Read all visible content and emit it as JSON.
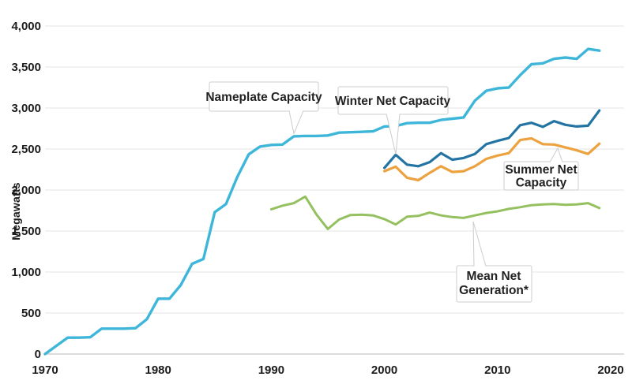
{
  "chart_data": {
    "type": "line",
    "title": "",
    "xlabel": "",
    "ylabel": "Megawatts",
    "xlim": [
      1970,
      2020
    ],
    "ylim": [
      0,
      4000
    ],
    "grid": true,
    "legend_position": "inline-callouts",
    "x_ticks": [
      1970,
      1980,
      1990,
      2000,
      2010,
      2020
    ],
    "x_tick_labels": [
      "1970",
      "1980",
      "1990",
      "2000",
      "2010",
      "2020"
    ],
    "y_ticks": [
      0,
      500,
      1000,
      1500,
      2000,
      2500,
      3000,
      3500,
      4000
    ],
    "y_tick_labels": [
      "0",
      "500",
      "1,000",
      "1,500",
      "2,000",
      "2,500",
      "3,000",
      "3,500",
      "4,000"
    ],
    "series": [
      {
        "name": "Nameplate Capacity",
        "color": "#3eb6da",
        "stroke_width": 3.4,
        "start_year": 1970,
        "values": [
          0,
          100,
          200,
          200,
          205,
          310,
          310,
          310,
          315,
          425,
          675,
          675,
          840,
          1100,
          1160,
          1730,
          1830,
          2160,
          2435,
          2530,
          2550,
          2555,
          2655,
          2660,
          2660,
          2665,
          2700,
          2705,
          2710,
          2715,
          2775,
          2780,
          2815,
          2820,
          2820,
          2855,
          2870,
          2885,
          3090,
          3210,
          3240,
          3250,
          3400,
          3535,
          3545,
          3600,
          3615,
          3600,
          3720,
          3700
        ]
      },
      {
        "name": "Winter Net Capacity",
        "color": "#2374a3",
        "stroke_width": 3.2,
        "start_year": 2000,
        "values": [
          2270,
          2430,
          2310,
          2290,
          2340,
          2450,
          2370,
          2390,
          2440,
          2560,
          2600,
          2635,
          2790,
          2820,
          2770,
          2840,
          2795,
          2775,
          2785,
          2970
        ]
      },
      {
        "name": "Summer Net Capacity",
        "color": "#eba23f",
        "stroke_width": 3.2,
        "start_year": 2000,
        "values": [
          2230,
          2285,
          2150,
          2120,
          2210,
          2290,
          2220,
          2230,
          2290,
          2380,
          2420,
          2450,
          2610,
          2630,
          2560,
          2555,
          2520,
          2485,
          2440,
          2565
        ]
      },
      {
        "name": "Mean Net Generation*",
        "color": "#94c05f",
        "stroke_width": 3,
        "start_year": 1990,
        "values": [
          1765,
          1810,
          1840,
          1920,
          1700,
          1525,
          1640,
          1695,
          1700,
          1690,
          1645,
          1580,
          1675,
          1685,
          1725,
          1690,
          1670,
          1660,
          1690,
          1720,
          1740,
          1770,
          1790,
          1815,
          1825,
          1830,
          1820,
          1825,
          1840,
          1780
        ]
      }
    ],
    "annotations": [
      {
        "id": "nameplate-capacity",
        "lines": [
          "Nameplate Capacity"
        ],
        "target": {
          "series": "Nameplate Capacity",
          "year": 1992,
          "value": 2655
        }
      },
      {
        "id": "winter-net-capacity",
        "lines": [
          "Winter Net Capacity"
        ],
        "target": {
          "series": "Winter Net Capacity",
          "year": 2001,
          "value": 2430
        }
      },
      {
        "id": "summer-net-capacity",
        "lines": [
          "Summer Net",
          "Capacity"
        ],
        "target": {
          "series": "Summer Net Capacity",
          "year": 2015,
          "value": 2555
        }
      },
      {
        "id": "mean-net-generation",
        "lines": [
          "Mean Net",
          "Generation*"
        ],
        "target": {
          "series": "Mean Net Generation*",
          "year": 2008,
          "value": 1690
        }
      }
    ]
  }
}
